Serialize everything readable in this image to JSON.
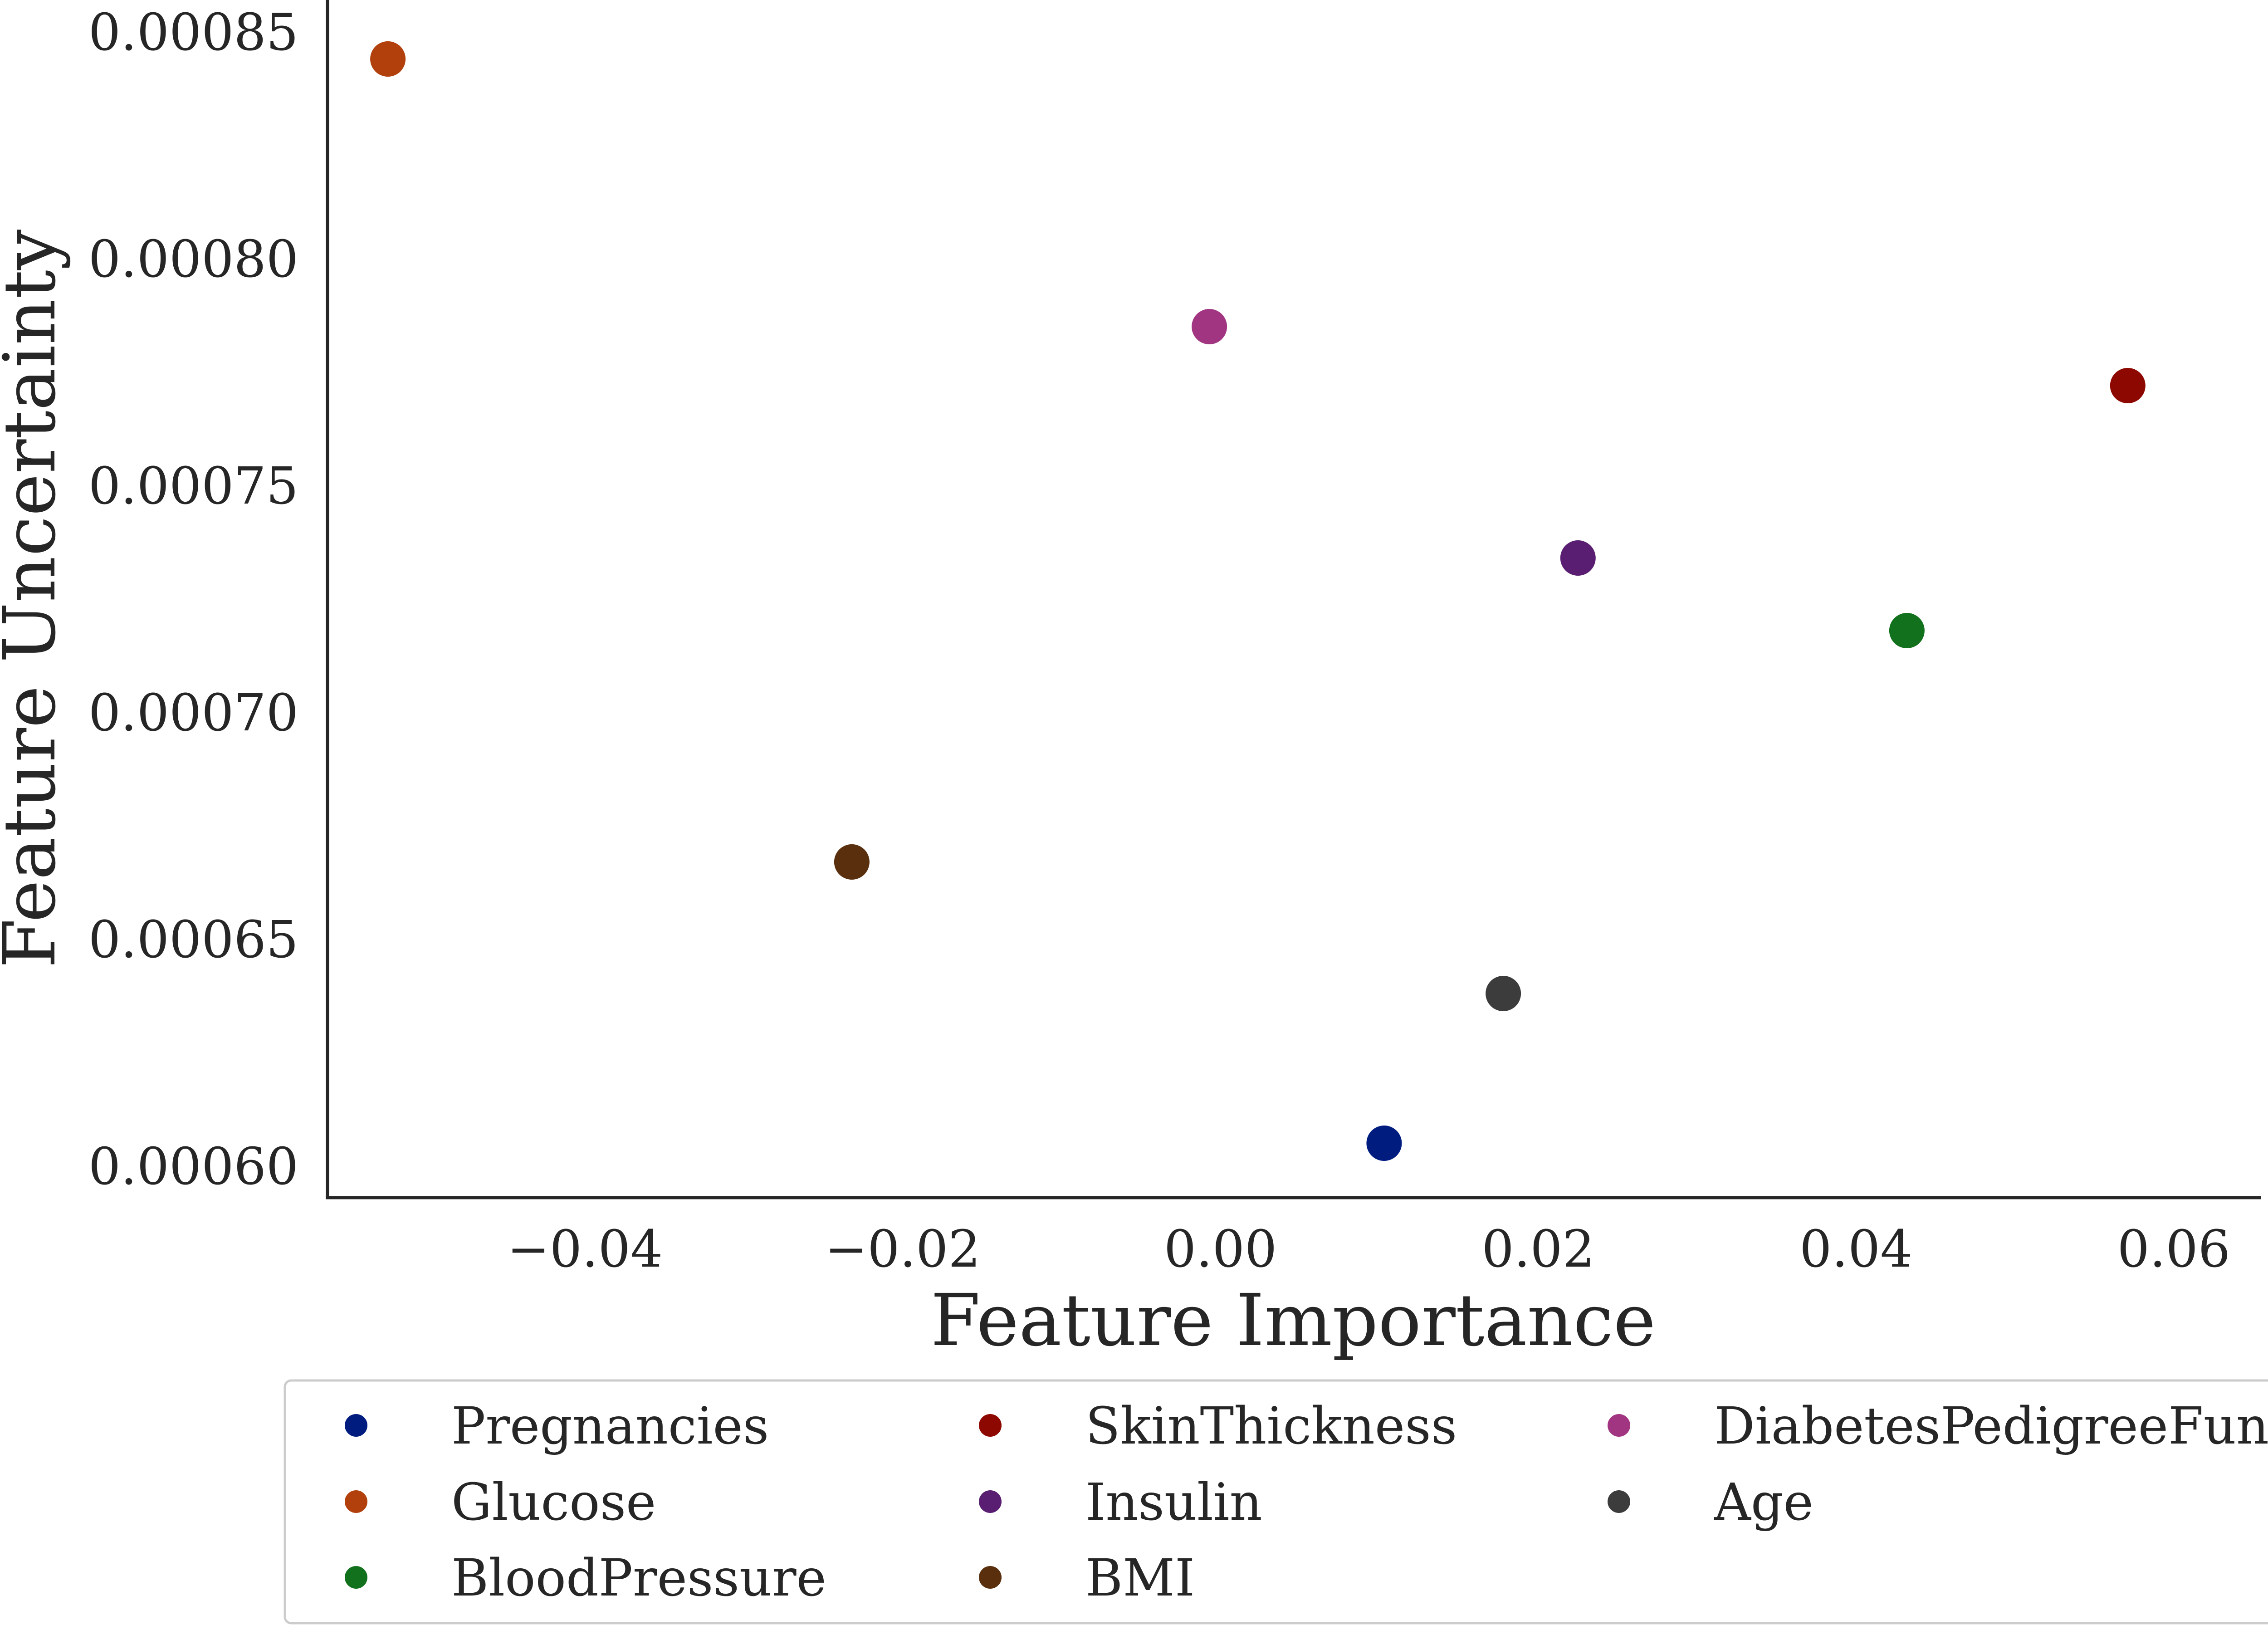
{
  "chart_data": {
    "type": "scatter",
    "title": "",
    "xlabel": "Feature Importance",
    "ylabel": "Feature Uncertainty",
    "xlim": [
      -0.0562,
      0.0655
    ],
    "ylim": [
      0.000593,
      0.000857
    ],
    "xticks": [
      -0.04,
      -0.02,
      0.0,
      0.02,
      0.04,
      0.06
    ],
    "xtick_labels": [
      "−0.04",
      "−0.02",
      "0.00",
      "0.02",
      "0.04",
      "0.06"
    ],
    "yticks": [
      0.0006,
      0.00065,
      0.0007,
      0.00075,
      0.0008,
      0.00085
    ],
    "ytick_labels": [
      "0.00060",
      "0.00065",
      "0.00070",
      "0.00075",
      "0.00080",
      "0.00085"
    ],
    "grid": false,
    "legend_position": "bottom",
    "series": [
      {
        "name": "Pregnancies",
        "color": "#001c7f",
        "x": 0.0103,
        "y": 0.000605
      },
      {
        "name": "Glucose",
        "color": "#b1400d",
        "x": -0.0524,
        "y": 0.000844
      },
      {
        "name": "BloodPressure",
        "color": "#12711c",
        "x": 0.0432,
        "y": 0.000718
      },
      {
        "name": "SkinThickness",
        "color": "#8c0800",
        "x": 0.0571,
        "y": 0.000772
      },
      {
        "name": "Insulin",
        "color": "#591e71",
        "x": 0.0225,
        "y": 0.000734
      },
      {
        "name": "BMI",
        "color": "#592f0d",
        "x": -0.0232,
        "y": 0.000667
      },
      {
        "name": "DiabetesPedigreeFunc",
        "color": "#a23582",
        "x": -0.0007,
        "y": 0.000785
      },
      {
        "name": "Age",
        "color": "#3c3c3c",
        "x": 0.0178,
        "y": 0.000638
      }
    ]
  }
}
